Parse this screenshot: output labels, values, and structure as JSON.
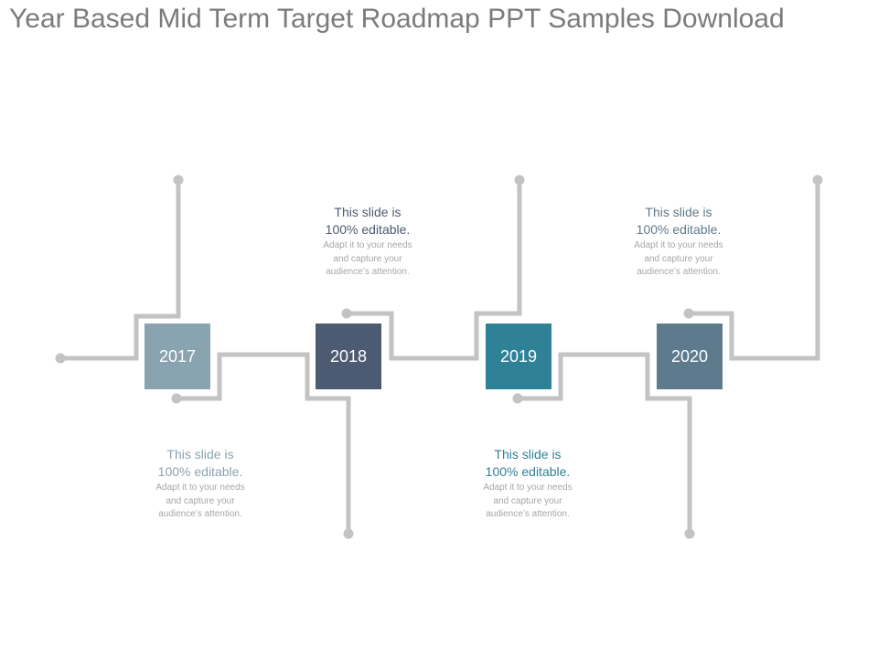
{
  "title": "Year Based Mid Term Target Roadmap PPT Samples Download",
  "colors": {
    "connector": "#c3c3c3",
    "year_2017": "#8aa3b1",
    "year_2018": "#4c5b71",
    "year_2019": "#2f8198",
    "year_2020": "#5d7b8d",
    "heading_2017": "#8aa3b1",
    "heading_2018": "#4c5b71",
    "heading_2019": "#2f8198",
    "heading_2020": "#5d7b8d"
  },
  "milestones": [
    {
      "year": "2017",
      "heading_line1": "This slide is",
      "heading_line2": "100% editable.",
      "body_line1": "Adapt it to your needs",
      "body_line2": "and capture your",
      "body_line3": "audience’s attention."
    },
    {
      "year": "2018",
      "heading_line1": "This slide is",
      "heading_line2": "100% editable.",
      "body_line1": "Adapt it to your needs",
      "body_line2": "and capture your",
      "body_line3": "audience’s attention."
    },
    {
      "year": "2019",
      "heading_line1": "This slide is",
      "heading_line2": "100% editable.",
      "body_line1": "Adapt it to your needs",
      "body_line2": "and capture your",
      "body_line3": "audience’s attention."
    },
    {
      "year": "2020",
      "heading_line1": "This slide is",
      "heading_line2": "100% editable.",
      "body_line1": "Adapt it to your needs",
      "body_line2": "and capture your",
      "body_line3": "audience’s attention."
    }
  ]
}
